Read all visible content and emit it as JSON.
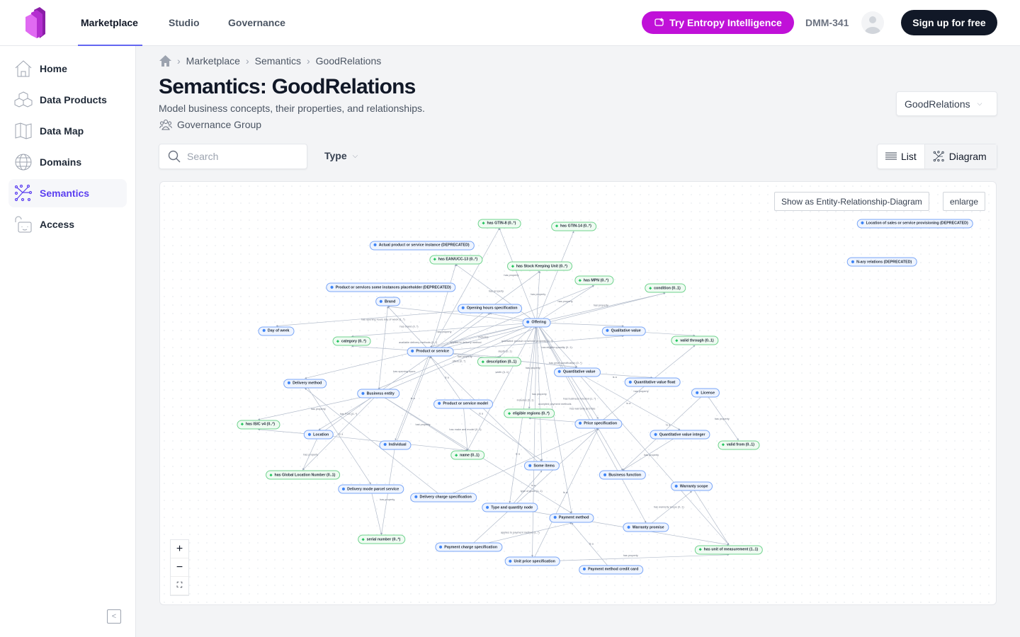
{
  "header": {
    "nav": [
      "Marketplace",
      "Studio",
      "Governance"
    ],
    "active_nav": "Marketplace",
    "try_button": "Try Entropy Intelligence",
    "user_id": "DMM-341",
    "signup": "Sign up for free",
    "accent": "#c011d8"
  },
  "sidebar": {
    "items": [
      {
        "label": "Home",
        "icon": "home-icon"
      },
      {
        "label": "Data Products",
        "icon": "cubes-icon"
      },
      {
        "label": "Data Map",
        "icon": "map-icon"
      },
      {
        "label": "Domains",
        "icon": "globe-icon"
      },
      {
        "label": "Semantics",
        "icon": "graph-icon",
        "active": true
      },
      {
        "label": "Access",
        "icon": "lock-icon"
      }
    ],
    "active_color": "#5b3ff0"
  },
  "breadcrumb": [
    "Marketplace",
    "Semantics",
    "GoodRelations"
  ],
  "page": {
    "title": "Semantics: GoodRelations",
    "subtitle": "Model business concepts, their properties, and relationships.",
    "group": "Governance Group",
    "selector": "GoodRelations"
  },
  "filters": {
    "search_placeholder": "Search",
    "type_label": "Type"
  },
  "view_toggle": {
    "list": "List",
    "diagram": "Diagram",
    "selected": "Diagram"
  },
  "diagram": {
    "buttons": {
      "er": "Show as Entity-Relationship-Diagram",
      "enlarge": "enlarge"
    },
    "zoom": {
      "in": "+",
      "out": "−",
      "fit": "⛶"
    },
    "classes": [
      "Actual product or service instance (DEPRECATED)",
      "Product or services some instances placeholder (DEPRECATED)",
      "Brand",
      "Opening hours specification",
      "Offering",
      "Day of week",
      "Qualitative value",
      "Product or service",
      "Quantitative value",
      "Delivery method",
      "Quantitative value float",
      "License",
      "Business entity",
      "Product or service model",
      "Price specification",
      "Location",
      "Quantitative value integer",
      "Individual",
      "Some items",
      "Business function",
      "Warranty scope",
      "Delivery mode parcel service",
      "Delivery charge specification",
      "Type and quantity node",
      "Payment method",
      "Warranty promise",
      "Payment charge specification",
      "Unit price specification",
      "Payment method credit card",
      "Location of sales or service provisioning (DEPRECATED)",
      "N-ary relations (DEPRECATED)"
    ],
    "properties": [
      "has GTIN-8 (0..*)",
      "has GTIN-14 (0..*)",
      "has EAN/UCC-13 (0..*)",
      "has Stock Keeping Unit (0..*)",
      "has MPN (0..*)",
      "condition (0..1)",
      "category (0..*)",
      "valid through (0..1)",
      "description (0..1)",
      "eligible regions (0..*)",
      "has ISIC v4 (0..*)",
      "valid from (0..1)",
      "name (0..1)",
      "has Global Location Number (0..1)",
      "serial number (0..*)",
      "has unit of measurement (1..1)"
    ],
    "edges": [
      [
        "Offering",
        "has GTIN-8 (0..*)",
        "has property"
      ],
      [
        "Offering",
        "has GTIN-14 (0..*)",
        ""
      ],
      [
        "Product or service",
        "has GTIN-8 (0..*)",
        ""
      ],
      [
        "Product or service",
        "has EAN/UCC-13 (0..*)",
        ""
      ],
      [
        "Offering",
        "has EAN/UCC-13 (0..*)",
        "has property"
      ],
      [
        "Offering",
        "has Stock Keeping Unit (0..*)",
        "has property"
      ],
      [
        "Product or service",
        "has Stock Keeping Unit (0..*)",
        ""
      ],
      [
        "Offering",
        "has MPN (0..*)",
        "has property"
      ],
      [
        "Product or service",
        "has MPN (0..*)",
        ""
      ],
      [
        "Offering",
        "condition (0..1)",
        "has property"
      ],
      [
        "Product or service",
        "condition (0..1)",
        ""
      ],
      [
        "Opening hours specification",
        "Day of week",
        "has opening hours day of week (1..*)"
      ],
      [
        "Product or service",
        "Brand",
        "has brand (0..*)"
      ],
      [
        "Offering",
        "Brand",
        ""
      ],
      [
        "Business entity",
        "Brand",
        ""
      ],
      [
        "Offering",
        "category (0..*)",
        "has property"
      ],
      [
        "Product or service",
        "category (0..*)",
        ""
      ],
      [
        "Offering",
        "Qualitative value",
        ""
      ],
      [
        "Qualitative value",
        "valid through (0..1)",
        ""
      ],
      [
        "Offering",
        "description (0..1)",
        ""
      ],
      [
        "Product or service",
        "description (0..1)",
        "has property"
      ],
      [
        "Product or service",
        "Quantitative value",
        "width (0..1)"
      ],
      [
        "Product or service",
        "Quantitative value",
        "depth (0..1)"
      ],
      [
        "Product or service",
        "Qualitative value",
        "qualitative product or service property (0..*)"
      ],
      [
        "Offering",
        "Quantitative value",
        "has eligible quantity (0..1)"
      ],
      [
        "Offering",
        "Delivery method",
        "available delivery methods (0..*)"
      ],
      [
        "Quantitative value",
        "Quantitative value float",
        "is a"
      ],
      [
        "Quantitative value",
        "Quantitative value integer",
        "is a"
      ],
      [
        "Price specification",
        "valid through (0..1)",
        "has property"
      ],
      [
        "License",
        "valid from (0..1)",
        "has property"
      ],
      [
        "License",
        "Business function",
        "is a"
      ],
      [
        "Offering",
        "Price specification",
        "has price specification (0..*)"
      ],
      [
        "Offering",
        "Business function",
        "has business function (1..*)"
      ],
      [
        "Offering",
        "eligible regions (0..*)",
        "has property"
      ],
      [
        "Price specification",
        "eligible regions (0..*)",
        ""
      ],
      [
        "Product or service model",
        "Product or service",
        "is a"
      ],
      [
        "Some items",
        "Product or service",
        "is a"
      ],
      [
        "Individual",
        "Product or service",
        "is a"
      ],
      [
        "Product or service model",
        "name (0..1)",
        "has make and model (0..1)"
      ],
      [
        "Business entity",
        "name (0..1)",
        "has property"
      ],
      [
        "Offering",
        "name (0..1)",
        ""
      ],
      [
        "Location",
        "name (0..1)",
        ""
      ],
      [
        "Business entity",
        "has ISIC v4 (0..*)",
        "has property"
      ],
      [
        "Location",
        "has ISIC v4 (0..*)",
        ""
      ],
      [
        "Business entity",
        "Location",
        "has POS (0..*)"
      ],
      [
        "Business entity",
        "Offering",
        "offers (0..*)"
      ],
      [
        "Offering",
        "Business entity",
        "applies to delivery method"
      ],
      [
        "Location",
        "has Global Location Number (0..1)",
        "has property"
      ],
      [
        "Business entity",
        "has Global Location Number (0..1)",
        ""
      ],
      [
        "Delivery method",
        "Delivery mode parcel service",
        "is a"
      ],
      [
        "Individual",
        "serial number (0..*)",
        "has property"
      ],
      [
        "Delivery mode parcel service",
        "serial number (0..*)",
        ""
      ],
      [
        "Delivery charge specification",
        "Price specification",
        "is a"
      ],
      [
        "Payment charge specification",
        "Price specification",
        "is a"
      ],
      [
        "Unit price specification",
        "Price specification",
        "is a"
      ],
      [
        "Type and quantity node",
        "Some items",
        "type of good (1..1)"
      ],
      [
        "Offering",
        "Type and quantity node",
        "includes (0..1)"
      ],
      [
        "Payment charge specification",
        "Payment method",
        "applies to payment method (1..*)"
      ],
      [
        "Payment method credit card",
        "Payment method",
        "is a"
      ],
      [
        "Warranty promise",
        "Warranty scope",
        "has warranty scope (0..1)"
      ],
      [
        "Offering",
        "Warranty promise",
        "has warranty promise"
      ],
      [
        "Unit price specification",
        "has unit of measurement (1..1)",
        "has property"
      ],
      [
        "Type and quantity node",
        "has unit of measurement (1..1)",
        ""
      ],
      [
        "Quantitative value",
        "has unit of measurement (1..1)",
        ""
      ],
      [
        "Warranty scope",
        "has unit of measurement (1..1)",
        ""
      ],
      [
        "Offering",
        "Some items",
        "has property"
      ],
      [
        "Product or service model",
        "Some items",
        ""
      ],
      [
        "Offering",
        "Product or service",
        "includes"
      ],
      [
        "Offering",
        "Opening hours specification",
        ""
      ],
      [
        "Location",
        "Opening hours specification",
        "has opening hours"
      ],
      [
        "Delivery charge specification",
        "Delivery method",
        ""
      ],
      [
        "Business entity",
        "Payment method",
        ""
      ],
      [
        "Offering",
        "Payment method",
        "accepted payment methods"
      ],
      [
        "Quantitative value integer",
        "Business function",
        "has property"
      ],
      [
        "Product or service",
        "Individual",
        ""
      ],
      [
        "Offering",
        "Unit price specification",
        ""
      ]
    ],
    "class_color": "#7aa6f7",
    "property_color": "#6fd38d"
  }
}
